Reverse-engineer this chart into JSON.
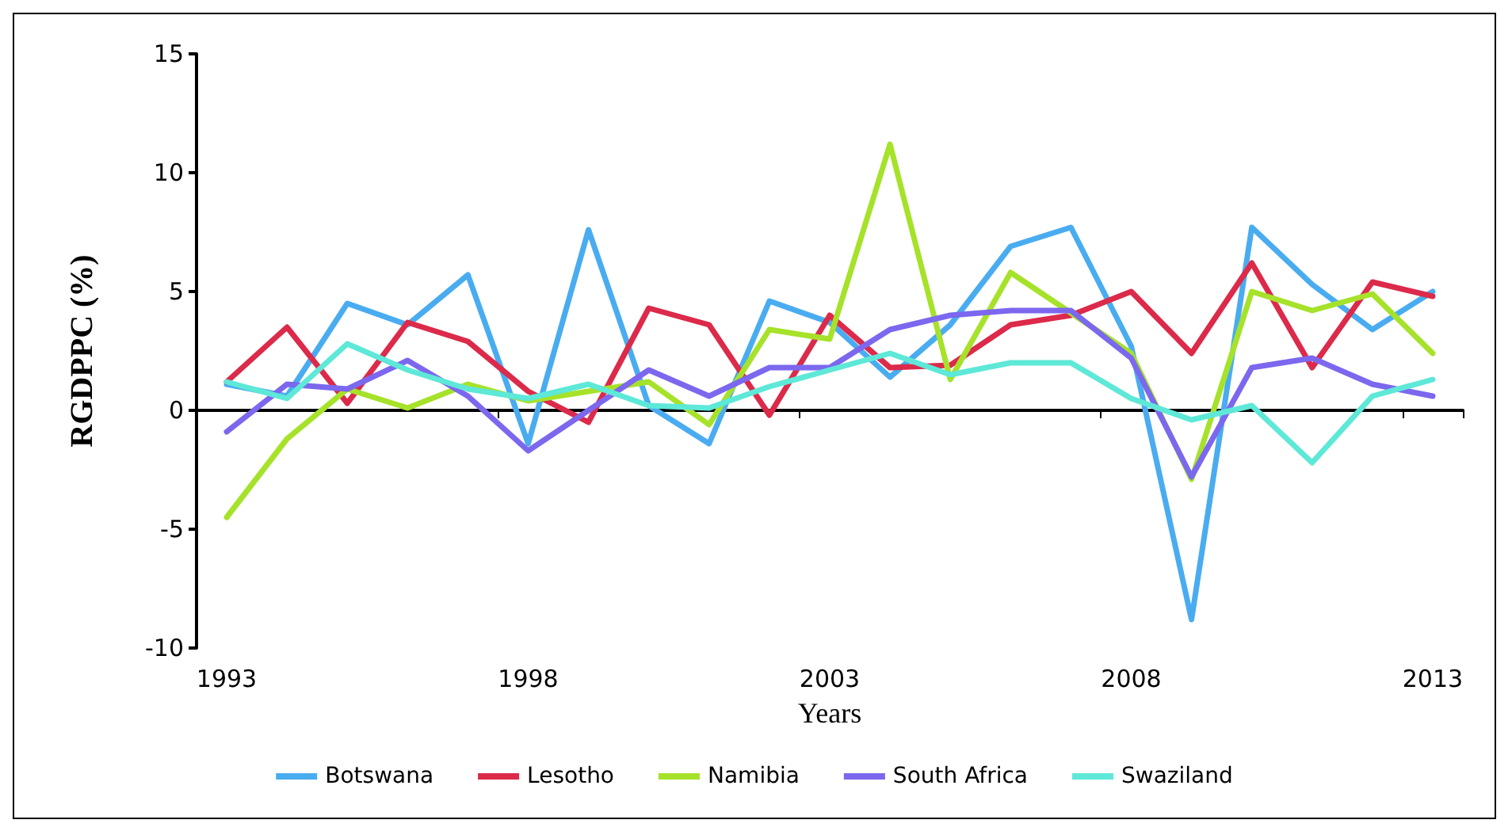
{
  "chart_data": {
    "type": "line",
    "xlabel": "Years",
    "ylabel": "RGDPPC (%)",
    "categories": [
      "1993",
      null,
      null,
      null,
      null,
      "1998",
      null,
      null,
      null,
      null,
      "2003",
      null,
      null,
      null,
      null,
      "2008",
      null,
      null,
      null,
      null,
      "2013"
    ],
    "series": [
      {
        "name": "Botswana",
        "color": "#4aacf0",
        "values": [
          1.1,
          0.6,
          4.5,
          3.6,
          5.7,
          -1.4,
          7.6,
          0.2,
          -1.4,
          4.6,
          3.7,
          1.4,
          3.6,
          6.9,
          7.7,
          2.7,
          -8.8,
          7.7,
          5.3,
          3.4,
          5.0
        ]
      },
      {
        "name": "Lesotho",
        "color": "#dc2a4a",
        "values": [
          1.2,
          3.5,
          0.3,
          3.7,
          2.9,
          0.8,
          -0.5,
          4.3,
          3.6,
          -0.2,
          4.0,
          1.8,
          1.9,
          3.6,
          4.0,
          5.0,
          2.4,
          6.2,
          1.8,
          5.4,
          4.8
        ]
      },
      {
        "name": "Namibia",
        "color": "#a6e22a",
        "values": [
          -4.5,
          -1.2,
          0.9,
          0.1,
          1.1,
          0.4,
          0.8,
          1.2,
          -0.6,
          3.4,
          3.0,
          11.2,
          1.3,
          5.8,
          4.1,
          2.4,
          -2.9,
          5.0,
          4.2,
          4.9,
          2.4
        ]
      },
      {
        "name": "South Africa",
        "color": "#7b68ee",
        "values": [
          -0.9,
          1.1,
          0.9,
          2.1,
          0.6,
          -1.7,
          0.0,
          1.7,
          0.6,
          1.8,
          1.8,
          3.4,
          4.0,
          4.2,
          4.2,
          2.2,
          -2.8,
          1.8,
          2.2,
          1.1,
          0.6
        ]
      },
      {
        "name": "Swaziland",
        "color": "#5ee8d8",
        "values": [
          1.2,
          0.5,
          2.8,
          1.7,
          0.9,
          0.5,
          1.1,
          0.2,
          0.1,
          1.0,
          1.7,
          2.4,
          1.5,
          2.0,
          2.0,
          0.5,
          -0.4,
          0.2,
          -2.2,
          0.6,
          1.3
        ]
      }
    ],
    "ylim": [
      -10,
      15
    ],
    "yticks": [
      -10,
      -5,
      0,
      5,
      10,
      15
    ],
    "legend": "bottom",
    "marker": "none",
    "line_style": "solid"
  }
}
